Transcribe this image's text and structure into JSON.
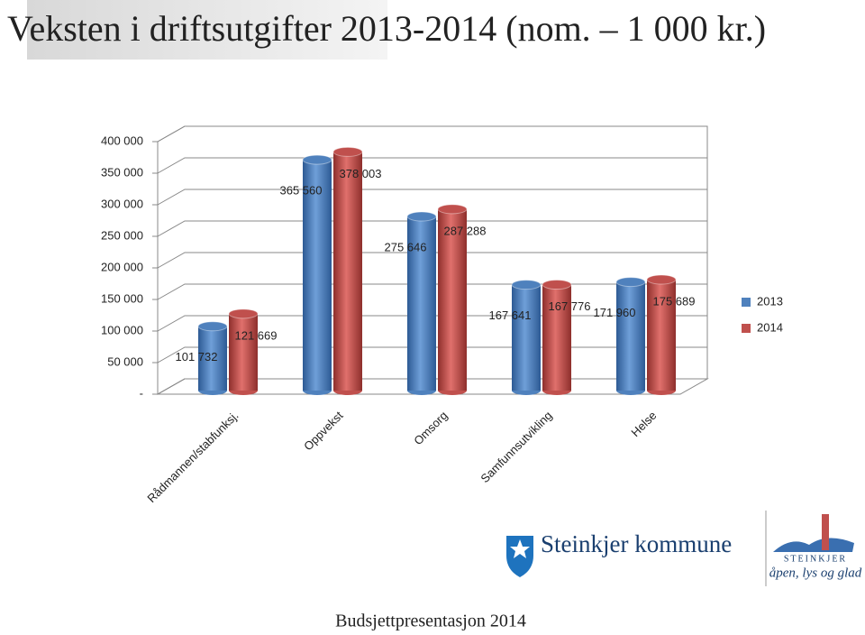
{
  "chart_data": {
    "type": "bar3d",
    "title": "Veksten i driftsutgifter 2013-2014 (nom. – 1 000 kr.)",
    "categories": [
      "Rådmannen/stabfunksj.",
      "Oppvekst",
      "Omsorg",
      "Samfunnsutvikling",
      "Helse"
    ],
    "series": [
      {
        "name": "2013",
        "color": "#4f81bd",
        "values": [
          101732,
          365560,
          275646,
          167641,
          171960
        ],
        "value_labels": [
          "101 732",
          "365 560",
          "275 646",
          "167 641",
          "171 960"
        ]
      },
      {
        "name": "2014",
        "color": "#c0504d",
        "values": [
          121669,
          378003,
          287288,
          167776,
          175689
        ],
        "value_labels": [
          "121 669",
          "378 003",
          "287 288",
          "167 776",
          "175 689"
        ]
      }
    ],
    "ylim": [
      0,
      400000
    ],
    "yticks": [
      {
        "value": 0,
        "label": "-"
      },
      {
        "value": 50000,
        "label": "50 000"
      },
      {
        "value": 100000,
        "label": "100 000"
      },
      {
        "value": 150000,
        "label": "150 000"
      },
      {
        "value": 200000,
        "label": "200 000"
      },
      {
        "value": 250000,
        "label": "250 000"
      },
      {
        "value": 300000,
        "label": "300 000"
      },
      {
        "value": 350000,
        "label": "350 000"
      },
      {
        "value": 400000,
        "label": "400 000"
      }
    ],
    "grid": true,
    "legend": "right"
  },
  "logo": {
    "name": "Steinkjer kommune",
    "town": "STEINKJER",
    "slogan": "åpen, lys og glad"
  },
  "footer": "Budsjettpresentasjon 2014"
}
